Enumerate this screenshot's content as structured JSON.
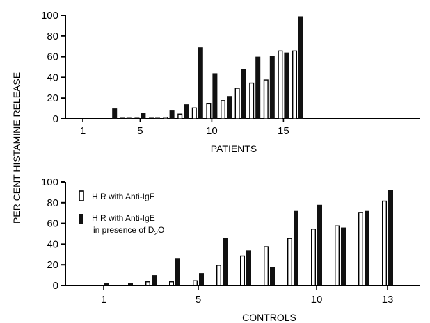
{
  "figure": {
    "y_axis_label": "PER CENT HISTAMINE RELEASE"
  },
  "chart_data": [
    {
      "type": "bar",
      "xlabel": "PATIENTS",
      "ylabel": "PER CENT HISTAMINE RELEASE",
      "ylim": [
        0,
        100
      ],
      "yticks": [
        0,
        20,
        40,
        60,
        80,
        100
      ],
      "xtick_labels": [
        "1",
        "5",
        "10",
        "15"
      ],
      "xtick_categories": [
        1,
        5,
        10,
        15
      ],
      "categories": [
        1,
        2,
        3,
        4,
        5,
        6,
        7,
        8,
        9,
        10,
        11,
        12,
        13,
        14,
        15,
        16
      ],
      "series": [
        {
          "name": "H R with Anti-IgE",
          "style": "open",
          "values": [
            0,
            0,
            0,
            1,
            1,
            1,
            2,
            5,
            11,
            15,
            18,
            30,
            35,
            38,
            66,
            66
          ]
        },
        {
          "name": "H R with Anti-IgE in presence of D2O",
          "style": "filled",
          "values": [
            0,
            0,
            10,
            1,
            6,
            1,
            8,
            14,
            69,
            44,
            22,
            48,
            60,
            61,
            64,
            99
          ]
        }
      ]
    },
    {
      "type": "bar",
      "xlabel": "CONTROLS",
      "ylabel": "PER CENT HISTAMINE RELEASE",
      "ylim": [
        0,
        100
      ],
      "yticks": [
        0,
        20,
        40,
        60,
        80,
        100
      ],
      "xtick_labels": [
        "1",
        "5",
        "10",
        "13"
      ],
      "xtick_categories": [
        1,
        5,
        10,
        13
      ],
      "categories": [
        1,
        2,
        3,
        4,
        5,
        6,
        7,
        8,
        9,
        10,
        11,
        12,
        13
      ],
      "legend": {
        "position": "top-left",
        "open_label": "H R with Anti-IgE",
        "filled_label_line1": "H R with Anti-IgE",
        "filled_label_line2_prefix": "in presence of D",
        "filled_label_line2_sub": "2",
        "filled_label_line2_suffix": "O"
      },
      "series": [
        {
          "name": "H R with Anti-IgE",
          "style": "open",
          "values": [
            0,
            0,
            4,
            4,
            5,
            20,
            29,
            38,
            46,
            55,
            58,
            71,
            82
          ]
        },
        {
          "name": "H R with Anti-IgE in presence of D2O",
          "style": "filled",
          "values": [
            2,
            2,
            10,
            26,
            12,
            46,
            34,
            18,
            72,
            78,
            56,
            72,
            92
          ]
        }
      ]
    }
  ]
}
